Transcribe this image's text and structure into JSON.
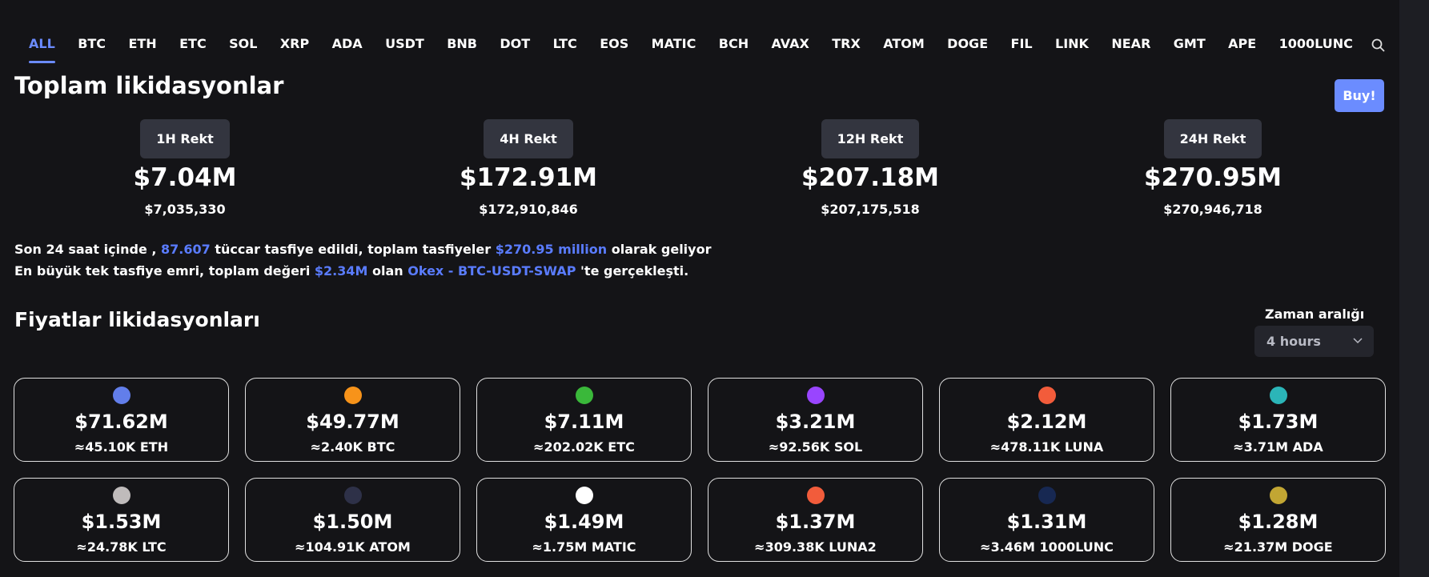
{
  "tabs": [
    "ALL",
    "BTC",
    "ETH",
    "ETC",
    "SOL",
    "XRP",
    "ADA",
    "USDT",
    "BNB",
    "DOT",
    "LTC",
    "EOS",
    "MATIC",
    "BCH",
    "AVAX",
    "TRX",
    "ATOM",
    "DOGE",
    "FIL",
    "LINK",
    "NEAR",
    "GMT",
    "APE",
    "1000LUNC"
  ],
  "header": {
    "title": "Toplam likidasyonlar",
    "button": "Buy!"
  },
  "rekt": [
    {
      "label": "1H Rekt",
      "short": "$7.04M",
      "full": "$7,035,330"
    },
    {
      "label": "4H Rekt",
      "short": "$172.91M",
      "full": "$172,910,846"
    },
    {
      "label": "12H Rekt",
      "short": "$207.18M",
      "full": "$207,175,518"
    },
    {
      "label": "24H Rekt",
      "short": "$270.95M",
      "full": "$270,946,718"
    }
  ],
  "summary": [
    [
      "Son 24 saat içinde ,",
      "87.607",
      "tüccar tasfiye edildi, toplam tasfiyeler",
      "$270.95 million",
      "olarak geliyor"
    ],
    [
      "En büyük tek tasfiye emri, toplam değeri",
      "$2.34M",
      "olan",
      "Okex - BTC-USDT-SWAP",
      "'te gerçekleşti."
    ]
  ],
  "prices": {
    "title": "Fiyatlar likidasyonları",
    "range_label": "Zaman aralığı",
    "range_value": "4 hours",
    "cards": [
      {
        "value": "$71.62M",
        "amount": "≈45.10K ETH",
        "color": "#627eea"
      },
      {
        "value": "$49.77M",
        "amount": "≈2.40K BTC",
        "color": "#f7931a"
      },
      {
        "value": "$7.11M",
        "amount": "≈202.02K ETC",
        "color": "#3ab83a"
      },
      {
        "value": "$3.21M",
        "amount": "≈92.56K SOL",
        "color": "#9945ff"
      },
      {
        "value": "$2.12M",
        "amount": "≈478.11K LUNA",
        "color": "#f25c3b"
      },
      {
        "value": "$1.73M",
        "amount": "≈3.71M ADA",
        "color": "#2bb5b8"
      },
      {
        "value": "$1.53M",
        "amount": "≈24.78K LTC",
        "color": "#bfbbbb"
      },
      {
        "value": "$1.50M",
        "amount": "≈104.91K ATOM",
        "color": "#2e3148"
      },
      {
        "value": "$1.49M",
        "amount": "≈1.75M MATIC",
        "color": "#ffffff"
      },
      {
        "value": "$1.37M",
        "amount": "≈309.38K LUNA2",
        "color": "#f25c3b"
      },
      {
        "value": "$1.31M",
        "amount": "≈3.46M 1000LUNC",
        "color": "#172852"
      },
      {
        "value": "$1.28M",
        "amount": "≈21.37M DOGE",
        "color": "#c2a633"
      }
    ]
  }
}
